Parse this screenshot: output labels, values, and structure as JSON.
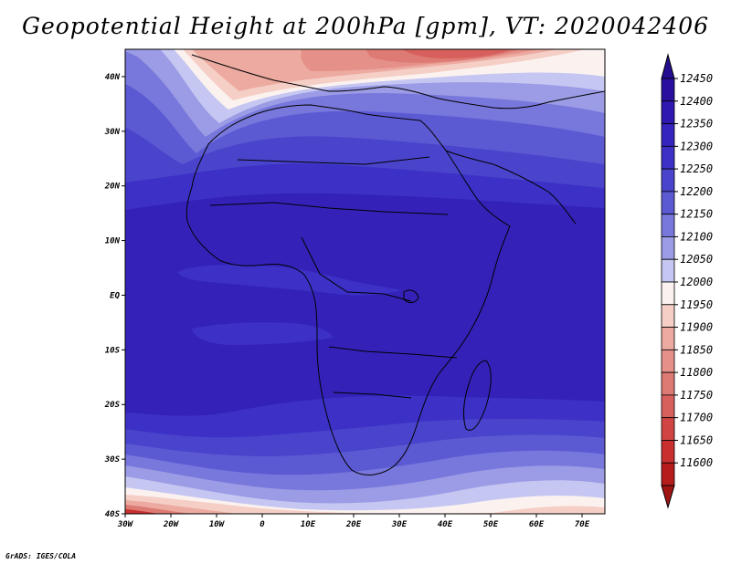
{
  "title": "Geopotential Height at 200hPa [gpm], VT: 2020042406",
  "credit": "GrADS: IGES/COLA",
  "map": {
    "lon_range": [
      -30,
      75
    ],
    "lat_range": [
      -40,
      45
    ],
    "lon_ticks": [
      {
        "value": -30,
        "label": "30W"
      },
      {
        "value": -20,
        "label": "20W"
      },
      {
        "value": -10,
        "label": "10W"
      },
      {
        "value": 0,
        "label": "0"
      },
      {
        "value": 10,
        "label": "10E"
      },
      {
        "value": 20,
        "label": "20E"
      },
      {
        "value": 30,
        "label": "30E"
      },
      {
        "value": 40,
        "label": "40E"
      },
      {
        "value": 50,
        "label": "50E"
      },
      {
        "value": 60,
        "label": "60E"
      },
      {
        "value": 70,
        "label": "70E"
      }
    ],
    "lat_ticks": [
      {
        "value": 40,
        "label": "40N"
      },
      {
        "value": 30,
        "label": "30N"
      },
      {
        "value": 20,
        "label": "20N"
      },
      {
        "value": 10,
        "label": "10N"
      },
      {
        "value": 0,
        "label": "EQ"
      },
      {
        "value": -10,
        "label": "10S"
      },
      {
        "value": -20,
        "label": "20S"
      },
      {
        "value": -30,
        "label": "30S"
      },
      {
        "value": -40,
        "label": "40S"
      }
    ]
  },
  "colorbar": {
    "levels": [
      {
        "label": "12450",
        "color": "#2a0f9e"
      },
      {
        "label": "12400",
        "color": "#2f18b0"
      },
      {
        "label": "12350",
        "color": "#3524bd"
      },
      {
        "label": "12300",
        "color": "#3c30c6"
      },
      {
        "label": "12250",
        "color": "#4a44cc"
      },
      {
        "label": "12200",
        "color": "#5c5ad3"
      },
      {
        "label": "12150",
        "color": "#7877dc"
      },
      {
        "label": "12100",
        "color": "#9b9be6"
      },
      {
        "label": "12050",
        "color": "#c5c6f1"
      },
      {
        "label": "12000",
        "color": "#fbf2f0"
      },
      {
        "label": "11950",
        "color": "#f5cfc6"
      },
      {
        "label": "11900",
        "color": "#ecaaa0"
      },
      {
        "label": "11850",
        "color": "#e5918a"
      },
      {
        "label": "11800",
        "color": "#dd7a73"
      },
      {
        "label": "11750",
        "color": "#d75f5c"
      },
      {
        "label": "11700",
        "color": "#d04544"
      },
      {
        "label": "11650",
        "color": "#c8302f"
      },
      {
        "label": "11600",
        "color": "#b51d1d"
      }
    ],
    "top_color": "#250c90",
    "bottom_color": "#a01414"
  },
  "colors": {
    "deep_blue": "#3422b8",
    "mid_blue": "#4a44cc",
    "light_blue": "#8f8fe2",
    "pale": "#e8e6f7",
    "pale_red": "#f1c0b8",
    "red": "#e3887f",
    "deep_red": "#c93a38"
  }
}
